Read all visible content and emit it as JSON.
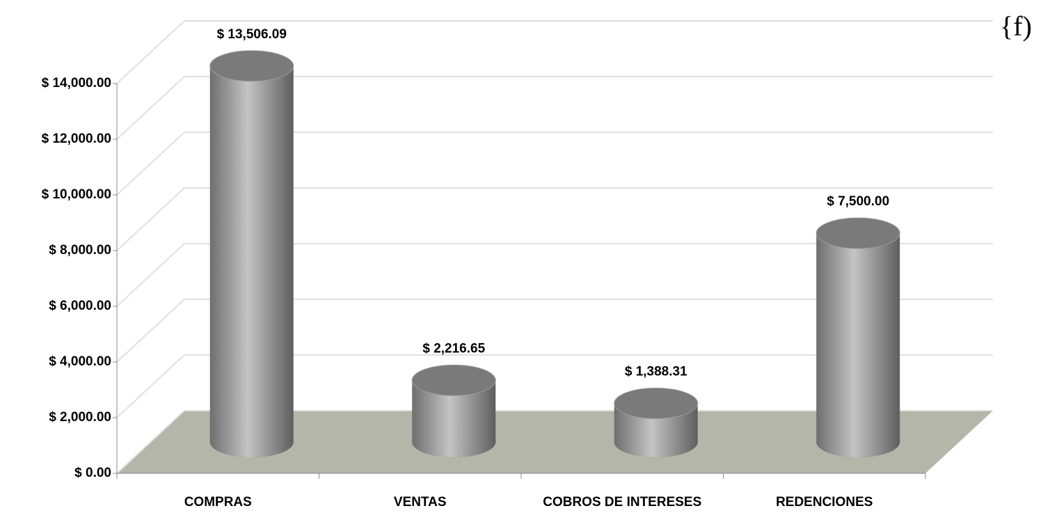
{
  "chart_data": {
    "type": "bar3d",
    "annotation": "{f)",
    "categories": [
      "COMPRAS",
      "VENTAS",
      "COBROS DE INTERESES",
      "REDENCIONES"
    ],
    "values": [
      13506.09,
      2216.65,
      1388.31,
      7500
    ],
    "value_labels": [
      "$ 13,506.09",
      "$ 2,216.65",
      "$ 1,388.31",
      "$ 7,500.00"
    ],
    "color": "#a6a6a6",
    "floor_color": "#b3b6a8",
    "ylim": [
      0,
      14000
    ],
    "yticks": [
      {
        "value": 0,
        "label": "$ 0.00"
      },
      {
        "value": 2000,
        "label": "$ 2,000.00"
      },
      {
        "value": 4000,
        "label": "$ 4,000.00"
      },
      {
        "value": 6000,
        "label": "$ 6,000.00"
      },
      {
        "value": 8000,
        "label": "$ 8,000.00"
      },
      {
        "value": 10000,
        "label": "$ 10,000.00"
      },
      {
        "value": 12000,
        "label": "$ 12,000.00"
      },
      {
        "value": 14000,
        "label": "$ 14,000.00"
      }
    ],
    "grid": true
  }
}
